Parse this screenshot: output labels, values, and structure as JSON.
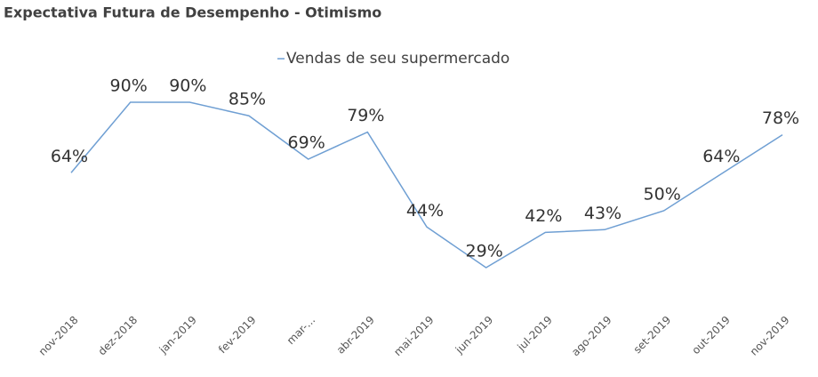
{
  "chart_data": {
    "type": "line",
    "title": "Expectativa Futura de Desempenho - Otimismo",
    "categories": [
      "nov-2018",
      "dez-2018",
      "jan-2019",
      "fev-2019",
      "mar-...",
      "abr-2019",
      "mai-2019",
      "jun-2019",
      "jul-2019",
      "ago-2019",
      "set-2019",
      "out-2019",
      "nov-2019"
    ],
    "series": [
      {
        "name": "Vendas de seu supermercado",
        "color": "#6f9fd3",
        "values": [
          64,
          90,
          90,
          85,
          69,
          79,
          44,
          29,
          42,
          43,
          50,
          64,
          78
        ],
        "value_labels": [
          "64%",
          "90%",
          "90%",
          "85%",
          "69%",
          "79%",
          "44%",
          "29%",
          "42%",
          "43%",
          "50%",
          "64%",
          "78%"
        ]
      }
    ],
    "grid": false
  }
}
